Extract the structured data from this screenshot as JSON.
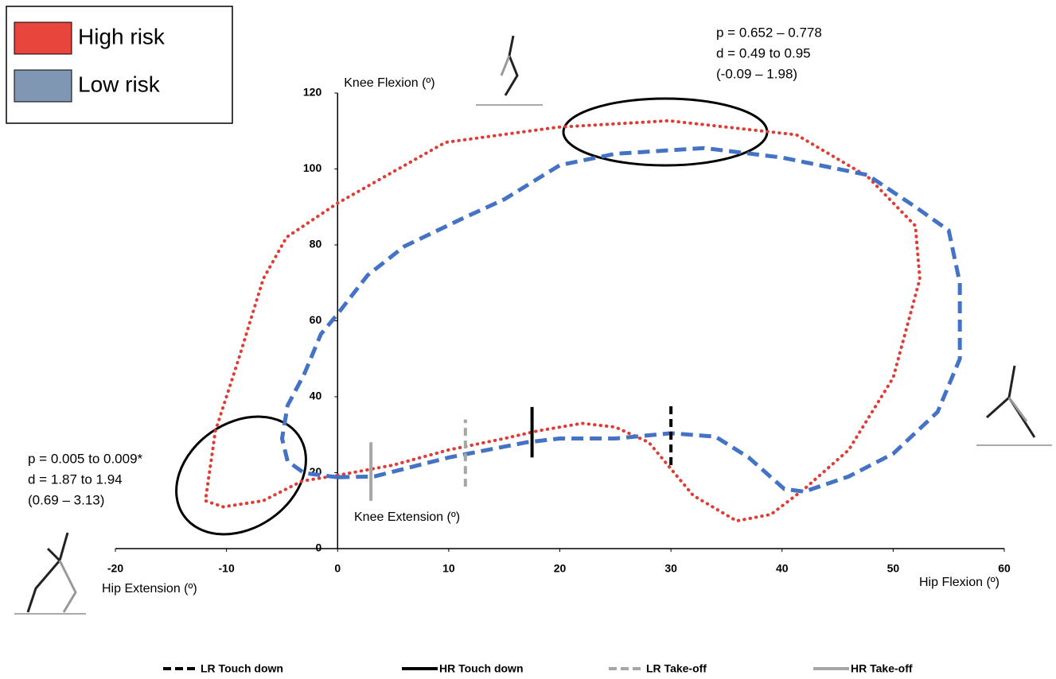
{
  "chart_data": {
    "type": "line",
    "xlim": [
      -20,
      60
    ],
    "xticks": [
      -20,
      -10,
      0,
      10,
      20,
      30,
      40,
      50,
      60
    ],
    "ylim": [
      0,
      120
    ],
    "yticks": [
      0,
      20,
      40,
      60,
      80,
      100,
      120
    ],
    "y_axis_label": "Knee Flexion (º)",
    "y_axis_label_negative": "Knee Extension (º)",
    "x_axis_label_negative": "Hip Extension (º)",
    "x_axis_label": "Hip Flexion (º)",
    "series": [
      {
        "name": "High risk",
        "color": "#e03b35",
        "legend_color": "#e8463c",
        "style": "dotted",
        "x": [
          0,
          5,
          10,
          15,
          18,
          22,
          25,
          28,
          30,
          32,
          35.9,
          39,
          42,
          46,
          50,
          52.4,
          52,
          47.7,
          41.3,
          29.8,
          19.8,
          9.7,
          0,
          -4.6,
          -6.7,
          -8.9,
          -11,
          -11.9,
          -10.3,
          -6.7,
          -3.2,
          0
        ],
        "values": [
          19.3,
          22,
          26,
          29,
          31,
          33,
          32,
          28,
          21,
          14,
          7.3,
          9,
          15.7,
          26,
          45,
          71,
          85,
          98,
          109,
          112.7,
          111,
          107,
          91,
          82,
          71,
          50,
          31,
          12.6,
          11,
          12.6,
          17.8,
          19.3
        ]
      },
      {
        "name": "Low risk",
        "color": "#4472c4",
        "legend_color": "#7f97b2",
        "style": "dashed",
        "x": [
          0,
          3.3,
          10,
          17,
          20,
          25,
          30,
          34,
          37,
          40.2,
          42,
          46,
          50,
          54,
          56,
          56,
          55,
          52,
          47.7,
          40,
          33,
          25,
          20,
          15,
          11.2,
          6,
          2.7,
          0,
          -1.5,
          -3,
          -4.5,
          -5,
          -4.5,
          -3,
          0
        ],
        "values": [
          18.8,
          19,
          24,
          28,
          29,
          29,
          30.4,
          29.5,
          24,
          15.7,
          15,
          19,
          25,
          36,
          50,
          70,
          83.8,
          90,
          98.4,
          103,
          105.5,
          104,
          101,
          92,
          86.9,
          79.6,
          72,
          61.8,
          56.5,
          46,
          37.7,
          29,
          23,
          19.9,
          18.8
        ]
      }
    ],
    "events": [
      {
        "name": "LR Touch down",
        "color": "#000000",
        "style": "dashed",
        "x": 30,
        "values": [
          22,
          38.7
        ]
      },
      {
        "name": "HR Touch down",
        "color": "#000000",
        "style": "solid",
        "x": 17.5,
        "values": [
          24,
          37.3
        ]
      },
      {
        "name": "LR Take-off",
        "color": "#a6a6a6",
        "style": "dashed",
        "x": 11.5,
        "values": [
          16.3,
          34
        ]
      },
      {
        "name": "HR Take-off",
        "color": "#a6a6a6",
        "style": "solid",
        "x": 3,
        "values": [
          12.6,
          28
        ]
      }
    ],
    "annotations": [
      {
        "lines": [
          "p = 0.652 – 0.778",
          "d  = 0.49 to 0.95",
          "(-0.09 – 1.98)"
        ]
      },
      {
        "lines": [
          "p = 0.005 to 0.009*",
          "d  = 1.87 to 1.94",
          "(0.69 – 3.13)"
        ]
      }
    ]
  }
}
